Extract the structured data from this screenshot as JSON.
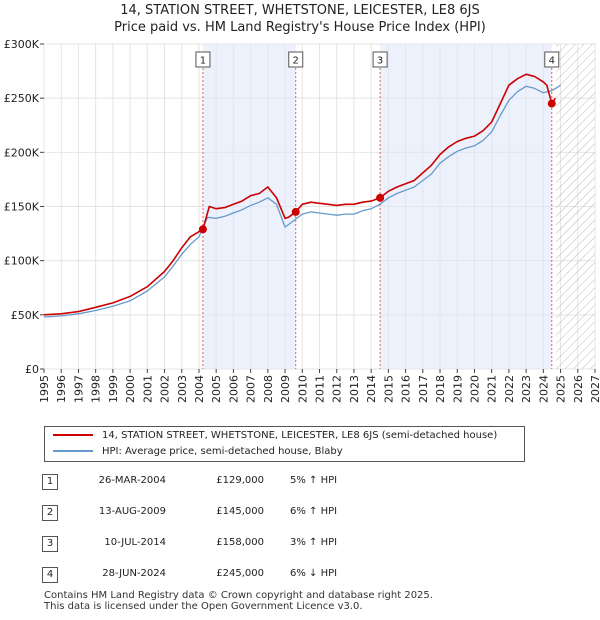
{
  "chart_data": {
    "type": "line",
    "title": "14, STATION STREET, WHETSTONE, LEICESTER, LE8 6JS",
    "subtitle": "Price paid vs. HM Land Registry's House Price Index (HPI)",
    "xlim": [
      1995,
      2027
    ],
    "ylim": [
      0,
      300000
    ],
    "x_ticks": [
      1995,
      1996,
      1997,
      1998,
      1999,
      2000,
      2001,
      2002,
      2003,
      2004,
      2005,
      2006,
      2007,
      2008,
      2009,
      2010,
      2011,
      2012,
      2013,
      2014,
      2015,
      2016,
      2017,
      2018,
      2019,
      2020,
      2021,
      2022,
      2023,
      2024,
      2025,
      2026,
      2027
    ],
    "y_ticks": [
      0,
      50000,
      100000,
      150000,
      200000,
      250000,
      300000
    ],
    "y_tick_labels": [
      "£0",
      "£50K",
      "£100K",
      "£150K",
      "£200K",
      "£250K",
      "£300K"
    ],
    "forecast_start": 2024.75,
    "series": [
      {
        "name": "14, STATION STREET, WHETSTONE, LEICESTER, LE8 6JS (semi-detached house)",
        "color": "#cc0000",
        "x": [
          1995,
          1996,
          1997,
          1998,
          1999,
          2000,
          2001,
          2002,
          2002.5,
          2003,
          2003.5,
          2004.23,
          2004.6,
          2005,
          2005.5,
          2006,
          2006.5,
          2007,
          2007.5,
          2008,
          2008.5,
          2009,
          2009.2,
          2009.62,
          2010,
          2010.5,
          2011,
          2011.5,
          2012,
          2012.5,
          2013,
          2013.5,
          2014,
          2014.52,
          2015,
          2015.5,
          2016,
          2016.5,
          2017,
          2017.5,
          2018,
          2018.5,
          2019,
          2019.5,
          2020,
          2020.5,
          2021,
          2021.5,
          2022,
          2022.5,
          2023,
          2023.5,
          2024,
          2024.2,
          2024.49,
          2024.7
        ],
        "values": [
          50000,
          51000,
          53000,
          57000,
          61000,
          67000,
          76000,
          90000,
          100000,
          112000,
          122000,
          129000,
          150000,
          148000,
          149000,
          152000,
          155000,
          160000,
          162000,
          168000,
          158000,
          139000,
          140000,
          145000,
          152000,
          154000,
          153000,
          152000,
          151000,
          152000,
          152000,
          154000,
          155000,
          158000,
          164000,
          168000,
          171000,
          174000,
          181000,
          188000,
          198000,
          205000,
          210000,
          213000,
          215000,
          220000,
          228000,
          245000,
          262000,
          268000,
          272000,
          270000,
          265000,
          262000,
          245000,
          250000
        ]
      },
      {
        "name": "HPI: Average price, semi-detached house, Blaby",
        "color": "#6699cc",
        "x": [
          1995,
          1996,
          1997,
          1998,
          1999,
          2000,
          2001,
          2002,
          2002.5,
          2003,
          2003.5,
          2004,
          2004.5,
          2005,
          2005.5,
          2006,
          2006.5,
          2007,
          2007.5,
          2008,
          2008.5,
          2009,
          2009.5,
          2010,
          2010.5,
          2011,
          2011.5,
          2012,
          2012.5,
          2013,
          2013.5,
          2014,
          2014.5,
          2015,
          2015.5,
          2016,
          2016.5,
          2017,
          2017.5,
          2018,
          2018.5,
          2019,
          2019.5,
          2020,
          2020.5,
          2021,
          2021.5,
          2022,
          2022.5,
          2023,
          2023.5,
          2024,
          2024.5,
          2025
        ],
        "values": [
          48000,
          49000,
          51000,
          54000,
          58000,
          63000,
          72000,
          85000,
          95000,
          106000,
          115000,
          122000,
          140000,
          139000,
          141000,
          144000,
          147000,
          151000,
          154000,
          158000,
          152000,
          131000,
          137000,
          143000,
          145000,
          144000,
          143000,
          142000,
          143000,
          143000,
          146000,
          148000,
          152000,
          158000,
          162000,
          165000,
          168000,
          174000,
          180000,
          190000,
          196000,
          201000,
          204000,
          206000,
          211000,
          219000,
          234000,
          248000,
          256000,
          261000,
          259000,
          255000,
          257000,
          262000
        ]
      }
    ],
    "transactions": [
      {
        "label": "1",
        "x": 2004.23,
        "value": 129000
      },
      {
        "label": "2",
        "x": 2009.62,
        "value": 145000
      },
      {
        "label": "3",
        "x": 2014.52,
        "value": 158000
      },
      {
        "label": "4",
        "x": 2024.49,
        "value": 245000
      }
    ]
  },
  "legend": {
    "property_label": "14, STATION STREET, WHETSTONE, LEICESTER, LE8 6JS (semi-detached house)",
    "hpi_label": "HPI: Average price, semi-detached house, Blaby"
  },
  "table": [
    {
      "num": "1",
      "date": "26-MAR-2004",
      "price": "£129,000",
      "hpi": "5% ↑ HPI"
    },
    {
      "num": "2",
      "date": "13-AUG-2009",
      "price": "£145,000",
      "hpi": "6% ↑ HPI"
    },
    {
      "num": "3",
      "date": "10-JUL-2014",
      "price": "£158,000",
      "hpi": "3% ↑ HPI"
    },
    {
      "num": "4",
      "date": "28-JUN-2024",
      "price": "£245,000",
      "hpi": "6% ↓ HPI"
    }
  ],
  "footer": {
    "line1": "Contains HM Land Registry data © Crown copyright and database right 2025.",
    "line2": "This data is licensed under the Open Government Licence v3.0."
  }
}
